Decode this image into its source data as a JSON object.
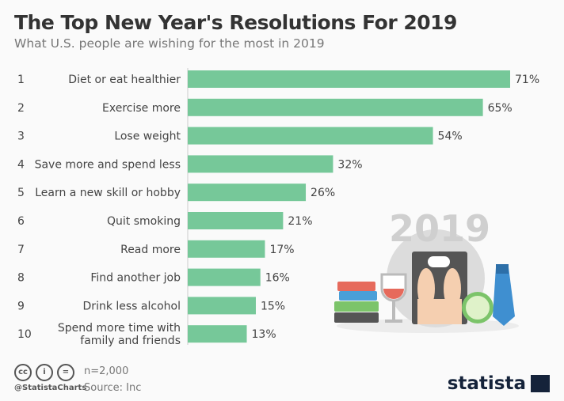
{
  "title": "The Top New Year's Resolutions For 2019",
  "subtitle": "What U.S. people are wishing for the most in 2019",
  "chart_data": {
    "type": "bar",
    "orientation": "horizontal",
    "ranks": [
      "1",
      "2",
      "3",
      "4",
      "5",
      "6",
      "7",
      "8",
      "9",
      "10"
    ],
    "categories": [
      "Diet or eat healthier",
      "Exercise more",
      "Lose weight",
      "Save more and spend less",
      "Learn a new skill or hobby",
      "Quit smoking",
      "Read more",
      "Find another job",
      "Drink less alcohol",
      "Spend more time with family and friends"
    ],
    "values": [
      71,
      65,
      54,
      32,
      26,
      21,
      17,
      16,
      15,
      13
    ],
    "value_labels": [
      "71%",
      "65%",
      "54%",
      "32%",
      "26%",
      "21%",
      "17%",
      "16%",
      "15%",
      "13%"
    ],
    "unit": "%",
    "xlim": [
      0,
      71
    ],
    "grid": false,
    "bar_color": "#76c899"
  },
  "illustration_text": "2019",
  "footer": {
    "n": "n=2,000",
    "source": "Source: Inc",
    "handle": "@StatistaCharts",
    "cc_icons": [
      "cc-icon",
      "by-icon",
      "nd-icon"
    ]
  },
  "logo": "statista"
}
